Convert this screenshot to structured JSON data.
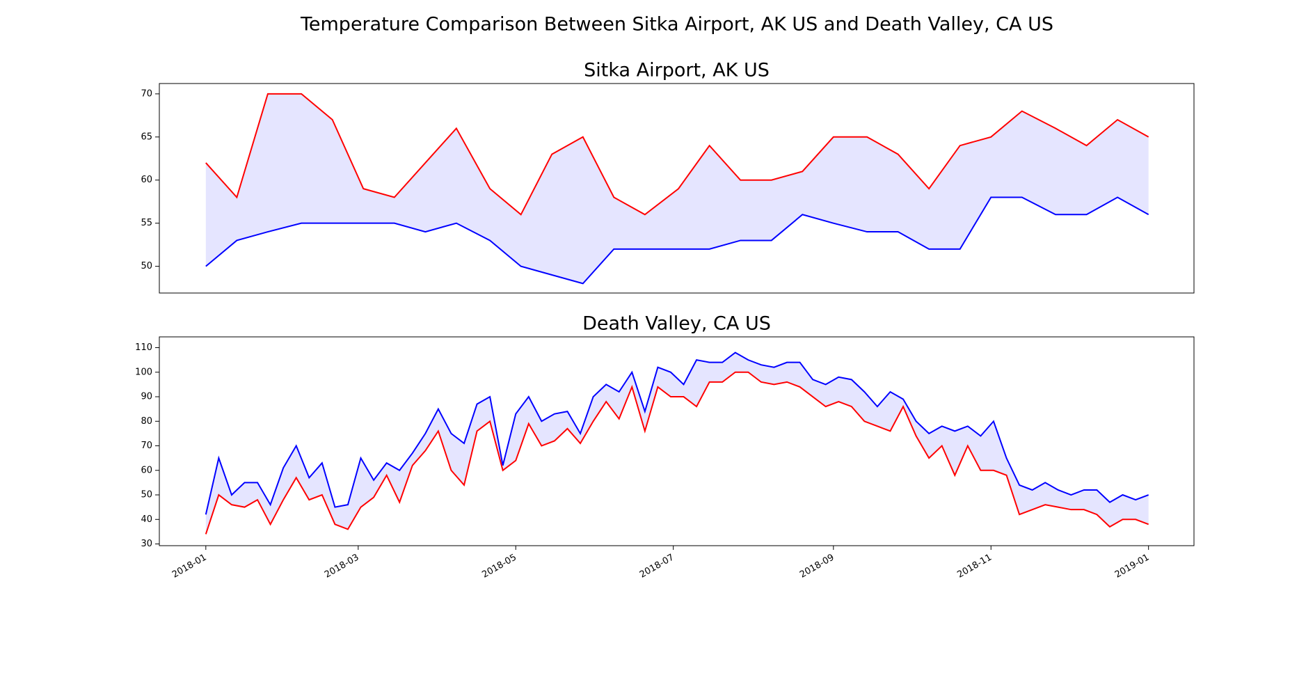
{
  "title": "Temperature Comparison Between Sitka Airport, AK US and Death Valley, CA US",
  "chart_data": [
    {
      "type": "line",
      "title": "Sitka Airport, AK US",
      "fill_between": true,
      "fill_color": "#e5e5ff",
      "x": [
        0,
        12,
        24,
        37,
        49,
        61,
        73,
        85,
        97,
        110,
        122,
        134,
        146,
        158,
        170,
        183,
        195,
        207,
        219,
        231,
        243,
        256,
        268,
        280,
        292,
        304,
        316,
        329,
        341,
        353,
        365
      ],
      "series": [
        {
          "color": "#ff0000",
          "values": [
            62,
            58,
            70,
            70,
            67,
            59,
            58,
            62,
            66,
            59,
            56,
            63,
            65,
            58,
            56,
            59,
            64,
            60,
            60,
            61,
            65,
            65,
            63,
            59,
            64,
            65,
            68,
            66,
            64,
            67,
            65
          ]
        },
        {
          "color": "#0000ff",
          "values": [
            50,
            53,
            54,
            55,
            55,
            55,
            55,
            54,
            55,
            53,
            50,
            49,
            48,
            52,
            52,
            52,
            52,
            53,
            53,
            56,
            55,
            54,
            54,
            52,
            52,
            58,
            58,
            56,
            56,
            58,
            56
          ]
        }
      ],
      "xlim": [
        -18,
        382.6
      ],
      "ylim": [
        46.9,
        71.2
      ],
      "yticks": [
        50,
        55,
        60,
        65,
        70
      ]
    },
    {
      "type": "line",
      "title": "Death Valley, CA US",
      "fill_between": true,
      "fill_color": "#e5e5ff",
      "x": [
        0,
        5,
        10,
        15,
        20,
        25,
        30,
        35,
        40,
        45,
        50,
        55,
        60,
        65,
        70,
        75,
        80,
        85,
        90,
        95,
        100,
        105,
        110,
        115,
        120,
        125,
        130,
        135,
        140,
        145,
        150,
        155,
        160,
        165,
        170,
        175,
        180,
        185,
        190,
        195,
        200,
        205,
        210,
        215,
        220,
        225,
        230,
        235,
        240,
        245,
        250,
        255,
        260,
        265,
        270,
        275,
        280,
        285,
        290,
        295,
        300,
        305,
        310,
        315,
        320,
        325,
        330,
        335,
        340,
        345,
        350,
        355,
        360,
        365
      ],
      "series": [
        {
          "color": "#0000ff",
          "values": [
            42,
            65,
            50,
            55,
            55,
            46,
            61,
            70,
            57,
            63,
            45,
            46,
            65,
            56,
            63,
            60,
            67,
            75,
            85,
            75,
            71,
            87,
            90,
            62,
            83,
            90,
            80,
            83,
            84,
            75,
            90,
            95,
            92,
            100,
            84,
            102,
            100,
            95,
            105,
            104,
            104,
            108,
            105,
            103,
            102,
            104,
            104,
            97,
            95,
            98,
            97,
            92,
            86,
            92,
            89,
            80,
            75,
            78,
            76,
            78,
            74,
            80,
            65,
            54,
            52,
            55,
            52,
            50,
            52,
            52,
            47,
            50,
            48,
            50
          ]
        },
        {
          "color": "#ff0000",
          "values": [
            34,
            50,
            46,
            45,
            48,
            38,
            48,
            57,
            48,
            50,
            38,
            36,
            45,
            49,
            58,
            47,
            62,
            68,
            76,
            60,
            54,
            76,
            80,
            60,
            64,
            79,
            70,
            72,
            77,
            71,
            80,
            88,
            81,
            94,
            76,
            94,
            90,
            90,
            86,
            96,
            96,
            100,
            100,
            96,
            95,
            96,
            94,
            90,
            86,
            88,
            86,
            80,
            78,
            76,
            86,
            74,
            65,
            70,
            58,
            70,
            60,
            60,
            58,
            42,
            44,
            46,
            45,
            44,
            44,
            42,
            37,
            40,
            40,
            38
          ]
        }
      ],
      "xlim": [
        -18,
        382.6
      ],
      "ylim": [
        29.3,
        114.4
      ],
      "yticks": [
        30,
        40,
        50,
        60,
        70,
        80,
        90,
        100,
        110
      ],
      "xticks": [
        {
          "value": 0,
          "label": "2018-01"
        },
        {
          "value": 59,
          "label": "2018-03"
        },
        {
          "value": 120,
          "label": "2018-05"
        },
        {
          "value": 181,
          "label": "2018-07"
        },
        {
          "value": 243,
          "label": "2018-09"
        },
        {
          "value": 304,
          "label": "2018-11"
        },
        {
          "value": 365,
          "label": "2019-01"
        }
      ]
    }
  ]
}
